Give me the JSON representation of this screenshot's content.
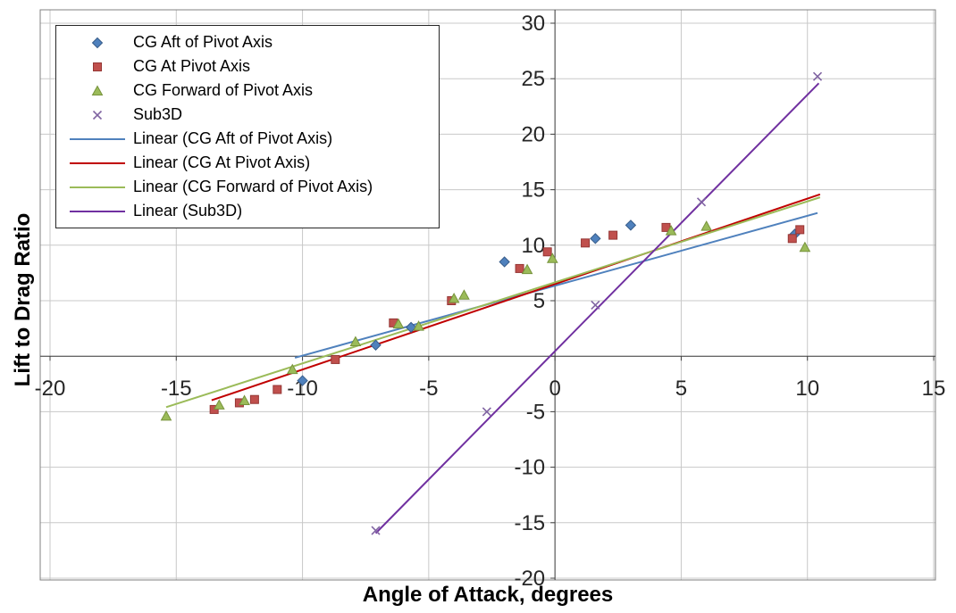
{
  "chart_data": {
    "type": "scatter",
    "title": "",
    "xlabel": "Angle of Attack, degrees",
    "ylabel": "Lift to Drag Ratio",
    "xlim": [
      -20,
      15
    ],
    "ylim": [
      -20,
      30
    ],
    "xticks": [
      -20,
      -15,
      -10,
      -5,
      0,
      5,
      10,
      15
    ],
    "yticks": [
      -20,
      -15,
      -10,
      -5,
      0,
      5,
      10,
      15,
      20,
      25,
      30
    ],
    "grid": true,
    "legend_position": "top-left",
    "colors": {
      "grid": "#c8c8c8",
      "axis": "#404040",
      "tick_label": "#262626",
      "plot_border": "#808080",
      "background": "#ffffff"
    },
    "series": [
      {
        "name": "CG Aft of Pivot Axis",
        "marker": "diamond",
        "color": "#4f81bd",
        "edge": "#385d8a",
        "points": [
          [
            -10,
            -2.2
          ],
          [
            -7.1,
            1
          ],
          [
            -5.7,
            2.6
          ],
          [
            -2,
            8.5
          ],
          [
            1.6,
            10.6
          ],
          [
            3,
            11.8
          ],
          [
            9.5,
            11
          ]
        ]
      },
      {
        "name": "CG At Pivot Axis",
        "marker": "square",
        "color": "#c0504d",
        "edge": "#953735",
        "points": [
          [
            -13.5,
            -4.8
          ],
          [
            -12.5,
            -4.2
          ],
          [
            -11.9,
            -3.9
          ],
          [
            -11,
            -3
          ],
          [
            -8.7,
            -0.3
          ],
          [
            -6.4,
            3
          ],
          [
            -4.1,
            5
          ],
          [
            -1.4,
            7.9
          ],
          [
            -0.3,
            9.4
          ],
          [
            1.2,
            10.2
          ],
          [
            2.3,
            10.9
          ],
          [
            4.4,
            11.6
          ],
          [
            9.4,
            10.6
          ],
          [
            9.7,
            11.4
          ]
        ]
      },
      {
        "name": "CG Forward of Pivot Axis",
        "marker": "triangle",
        "color": "#9bbb59",
        "edge": "#77933c",
        "points": [
          [
            -15.4,
            -5.4
          ],
          [
            -13.3,
            -4.4
          ],
          [
            -12.3,
            -4
          ],
          [
            -10.4,
            -1.2
          ],
          [
            -7.9,
            1.3
          ],
          [
            -6.2,
            2.9
          ],
          [
            -5.4,
            2.7
          ],
          [
            -4,
            5.2
          ],
          [
            -3.6,
            5.5
          ],
          [
            -1.1,
            7.8
          ],
          [
            -0.1,
            8.8
          ],
          [
            4.6,
            11.3
          ],
          [
            6,
            11.7
          ],
          [
            9.9,
            9.8
          ]
        ]
      },
      {
        "name": "Sub3D",
        "marker": "x",
        "color": "#8064a2",
        "edge": "#8064a2",
        "points": [
          [
            -7.1,
            -15.7
          ],
          [
            -2.7,
            -5
          ],
          [
            1.6,
            4.6
          ],
          [
            5.8,
            13.9
          ],
          [
            10.4,
            25.2
          ]
        ]
      }
    ],
    "trendlines": [
      {
        "name": "Linear (CG Aft of Pivot Axis)",
        "color": "#4f81bd",
        "slope": 0.63,
        "intercept": 6.35,
        "x_range": [
          -10.3,
          10.4
        ]
      },
      {
        "name": "Linear (CG At Pivot Axis)",
        "color": "#c00000",
        "slope": 0.77,
        "intercept": 6.5,
        "x_range": [
          -13.6,
          10.5
        ]
      },
      {
        "name": "Linear (CG Forward of Pivot Axis)",
        "color": "#9bbb59",
        "slope": 0.73,
        "intercept": 6.65,
        "x_range": [
          -15.4,
          10.5
        ]
      },
      {
        "name": "Linear (Sub3D)",
        "color": "#7030a0",
        "slope": 2.31,
        "intercept": 0.45,
        "x_range": [
          -7.1,
          10.45
        ]
      }
    ]
  }
}
